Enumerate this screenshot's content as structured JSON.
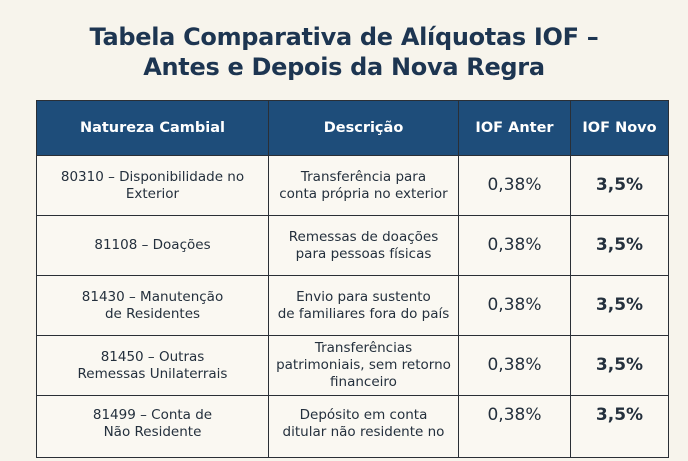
{
  "title": {
    "line1": "Tabela Comparativa de Alíquotas IOF –",
    "line2": "Antes e Depois da Nova Regra"
  },
  "table": {
    "headers": [
      "Natureza Cambial",
      "Descrição",
      "IOF Anter",
      "IOF Novo"
    ],
    "rows": [
      {
        "nature": "80310 – Disponibilidade no\nExterior",
        "description": "Transferência para\nconta própria no exterior",
        "old": "0,38%",
        "new": "3,5%"
      },
      {
        "nature": "81108 – Doações",
        "description": "Remessas de doações\npara pessoas físicas",
        "old": "0,38%",
        "new": "3,5%"
      },
      {
        "nature": "81430 – Manutenção\nde Residentes",
        "description": "Envio para sustento\nde familiares fora do país",
        "old": "0,38%",
        "new": "3,5%"
      },
      {
        "nature": "81450 – Outras\nRemessas Unilaterrais",
        "description": "Transferências\npatrimoniais, sem retorno\nfinanceiro",
        "old": "0,38%",
        "new": "3,5%"
      },
      {
        "nature": "81499 – Conta de\nNão Residente",
        "description": "Depósito em conta\nditular não residente no",
        "old": "0,38%",
        "new": "3,5%"
      }
    ]
  }
}
